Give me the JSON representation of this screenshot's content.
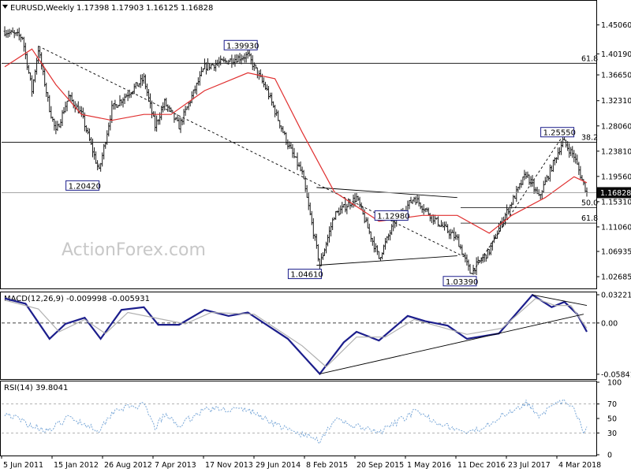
{
  "header": {
    "symbol": "EURUSD,Weekly",
    "open": "1.17398",
    "high": "1.17903",
    "low": "1.16125",
    "close": "1.16828"
  },
  "watermark": "ActionForex.com",
  "colors": {
    "price_bars": "#1a1a1a",
    "sma": "#e03030",
    "macd": "#1c1e8c",
    "signal": "#b0b0b0",
    "rsi": "#7aa8d8",
    "trendline": "#000000",
    "current_price_bg": "#0a0a0a"
  },
  "chart_data": [
    {
      "type": "candlestick",
      "panel": "price",
      "title": "EURUSD,Weekly 1.17398 1.17903 1.16125 1.16828",
      "ylim": [
        1.015,
        1.47
      ],
      "y_ticks": [
        "1.45060",
        "1.40190",
        "1.36650",
        "1.32310",
        "1.28060",
        "1.23810",
        "1.19560",
        "1.15310",
        "1.11060",
        "1.06935",
        "1.02685"
      ],
      "current_price": "1.16828",
      "x_ticks": [
        "5 Jun 2011",
        "15 Jan 2012",
        "26 Aug 2012",
        "7 Apr 2013",
        "17 Nov 2013",
        "29 Jun 2014",
        "8 Feb 2015",
        "20 Sep 2015",
        "1 May 2016",
        "11 Dec 2016",
        "23 Jul 2017",
        "4 Mar 2018"
      ],
      "price_path": [
        {
          "x": "2011-06-05",
          "y": 1.44
        },
        {
          "x": "2011-08-21",
          "y": 1.43
        },
        {
          "x": "2011-10-02",
          "y": 1.34
        },
        {
          "x": "2011-10-30",
          "y": 1.41
        },
        {
          "x": "2011-12-18",
          "y": 1.31
        },
        {
          "x": "2012-01-15",
          "y": 1.27
        },
        {
          "x": "2012-03-11",
          "y": 1.33
        },
        {
          "x": "2012-05-06",
          "y": 1.3
        },
        {
          "x": "2012-07-22",
          "y": 1.2042
        },
        {
          "x": "2012-09-16",
          "y": 1.31
        },
        {
          "x": "2013-02-03",
          "y": 1.36
        },
        {
          "x": "2013-03-24",
          "y": 1.28
        },
        {
          "x": "2013-05-05",
          "y": 1.32
        },
        {
          "x": "2013-07-07",
          "y": 1.28
        },
        {
          "x": "2013-10-27",
          "y": 1.38
        },
        {
          "x": "2014-05-04",
          "y": 1.3993
        },
        {
          "x": "2014-07-27",
          "y": 1.34
        },
        {
          "x": "2014-10-26",
          "y": 1.25
        },
        {
          "x": "2014-12-28",
          "y": 1.2
        },
        {
          "x": "2015-03-15",
          "y": 1.0461
        },
        {
          "x": "2015-05-17",
          "y": 1.13
        },
        {
          "x": "2015-08-23",
          "y": 1.16
        },
        {
          "x": "2015-11-29",
          "y": 1.058
        },
        {
          "x": "2016-02-07",
          "y": 1.12
        },
        {
          "x": "2016-05-01",
          "y": 1.16
        },
        {
          "x": "2016-08-07",
          "y": 1.12
        },
        {
          "x": "2016-11-06",
          "y": 1.09
        },
        {
          "x": "2017-01-01",
          "y": 1.0339
        },
        {
          "x": "2017-03-26",
          "y": 1.07
        },
        {
          "x": "2017-05-21",
          "y": 1.12
        },
        {
          "x": "2017-09-03",
          "y": 1.2
        },
        {
          "x": "2017-10-29",
          "y": 1.16
        },
        {
          "x": "2018-02-11",
          "y": 1.2555
        },
        {
          "x": "2018-04-01",
          "y": 1.23
        },
        {
          "x": "2018-05-06",
          "y": 1.19
        },
        {
          "x": "2018-05-27",
          "y": 1.16828
        }
      ],
      "sma_path": [
        {
          "x": "2011-06-05",
          "y": 1.38
        },
        {
          "x": "2011-10-02",
          "y": 1.41
        },
        {
          "x": "2012-01-15",
          "y": 1.35
        },
        {
          "x": "2012-05-06",
          "y": 1.3
        },
        {
          "x": "2012-09-16",
          "y": 1.29
        },
        {
          "x": "2013-02-03",
          "y": 1.3
        },
        {
          "x": "2013-06-02",
          "y": 1.3
        },
        {
          "x": "2013-10-27",
          "y": 1.34
        },
        {
          "x": "2014-05-04",
          "y": 1.37
        },
        {
          "x": "2014-08-31",
          "y": 1.36
        },
        {
          "x": "2014-12-28",
          "y": 1.27
        },
        {
          "x": "2015-05-17",
          "y": 1.17
        },
        {
          "x": "2015-11-29",
          "y": 1.12
        },
        {
          "x": "2016-06-05",
          "y": 1.13
        },
        {
          "x": "2016-11-06",
          "y": 1.13
        },
        {
          "x": "2017-03-26",
          "y": 1.1
        },
        {
          "x": "2017-07-02",
          "y": 1.13
        },
        {
          "x": "2017-11-26",
          "y": 1.16
        },
        {
          "x": "2018-04-01",
          "y": 1.195
        },
        {
          "x": "2018-05-27",
          "y": 1.185
        }
      ],
      "annotations": [
        {
          "label": "1.39930",
          "x": "2014-05-04",
          "y": 1.3993
        },
        {
          "label": "1.20420",
          "x": "2012-07-22",
          "y": 1.2042
        },
        {
          "label": "1.04610",
          "x": "2015-03-15",
          "y": 1.0461
        },
        {
          "label": "1.12980",
          "x": "2016-06-19",
          "y": 1.1298
        },
        {
          "label": "1.03390",
          "x": "2017-01-01",
          "y": 1.0339
        },
        {
          "label": "1.25550",
          "x": "2018-02-11",
          "y": 1.2555
        }
      ],
      "fib_lines": [
        {
          "label": "61.8",
          "y": 1.386
        },
        {
          "label": "38.2",
          "y": 1.253
        },
        {
          "label": "50.0",
          "y": 1.143
        },
        {
          "label": "61.8",
          "y": 1.117
        }
      ]
    },
    {
      "type": "line",
      "panel": "macd",
      "title": "MACD(12,26,9) -0.009998 -0.005931",
      "ylim": [
        -0.063,
        0.034
      ],
      "y_ticks": [
        "0.032215",
        "0.00",
        "-0.058413"
      ],
      "macd_path": [
        {
          "x": "2011-06-05",
          "y": 0.028
        },
        {
          "x": "2011-09-04",
          "y": 0.022
        },
        {
          "x": "2011-12-18",
          "y": -0.018
        },
        {
          "x": "2012-02-26",
          "y": -0.001
        },
        {
          "x": "2012-05-20",
          "y": 0.006
        },
        {
          "x": "2012-07-29",
          "y": -0.018
        },
        {
          "x": "2012-10-28",
          "y": 0.015
        },
        {
          "x": "2013-02-03",
          "y": 0.018
        },
        {
          "x": "2013-04-07",
          "y": -0.002
        },
        {
          "x": "2013-07-07",
          "y": -0.002
        },
        {
          "x": "2013-10-27",
          "y": 0.015
        },
        {
          "x": "2014-02-09",
          "y": 0.008
        },
        {
          "x": "2014-05-04",
          "y": 0.012
        },
        {
          "x": "2014-10-26",
          "y": -0.018
        },
        {
          "x": "2015-03-15",
          "y": -0.058
        },
        {
          "x": "2015-06-28",
          "y": -0.022
        },
        {
          "x": "2015-08-23",
          "y": -0.01
        },
        {
          "x": "2015-11-29",
          "y": -0.02
        },
        {
          "x": "2016-04-03",
          "y": 0.008
        },
        {
          "x": "2016-06-19",
          "y": 0.002
        },
        {
          "x": "2016-09-25",
          "y": -0.003
        },
        {
          "x": "2016-12-18",
          "y": -0.018
        },
        {
          "x": "2017-05-07",
          "y": -0.012
        },
        {
          "x": "2017-10-01",
          "y": 0.032
        },
        {
          "x": "2017-12-24",
          "y": 0.018
        },
        {
          "x": "2018-02-18",
          "y": 0.024
        },
        {
          "x": "2018-04-15",
          "y": 0.01
        },
        {
          "x": "2018-05-27",
          "y": -0.01
        }
      ],
      "signal_path": [
        {
          "x": "2011-06-05",
          "y": 0.026
        },
        {
          "x": "2011-10-30",
          "y": 0.016
        },
        {
          "x": "2012-01-29",
          "y": -0.01
        },
        {
          "x": "2012-05-20",
          "y": 0.004
        },
        {
          "x": "2012-08-19",
          "y": -0.012
        },
        {
          "x": "2012-11-25",
          "y": 0.012
        },
        {
          "x": "2013-04-28",
          "y": 0.004
        },
        {
          "x": "2013-08-04",
          "y": -0.001
        },
        {
          "x": "2013-11-24",
          "y": 0.012
        },
        {
          "x": "2014-06-01",
          "y": 0.01
        },
        {
          "x": "2014-12-28",
          "y": -0.026
        },
        {
          "x": "2015-04-12",
          "y": -0.05
        },
        {
          "x": "2015-08-23",
          "y": -0.016
        },
        {
          "x": "2015-12-27",
          "y": -0.016
        },
        {
          "x": "2016-05-01",
          "y": 0.004
        },
        {
          "x": "2016-12-18",
          "y": -0.013
        },
        {
          "x": "2017-05-21",
          "y": -0.006
        },
        {
          "x": "2017-10-15",
          "y": 0.028
        },
        {
          "x": "2018-01-07",
          "y": 0.02
        },
        {
          "x": "2018-03-18",
          "y": 0.02
        },
        {
          "x": "2018-05-27",
          "y": -0.006
        }
      ]
    },
    {
      "type": "line",
      "panel": "rsi",
      "title": "RSI(14) 39.8041",
      "ylim": [
        0,
        100
      ],
      "y_ticks": [
        "100",
        "70",
        "50",
        "30",
        "0"
      ],
      "rsi_path": [
        {
          "x": "2011-06-05",
          "y": 58
        },
        {
          "x": "2011-10-02",
          "y": 40
        },
        {
          "x": "2011-12-18",
          "y": 33
        },
        {
          "x": "2012-03-11",
          "y": 52
        },
        {
          "x": "2012-07-22",
          "y": 34
        },
        {
          "x": "2012-09-30",
          "y": 63
        },
        {
          "x": "2013-02-03",
          "y": 68
        },
        {
          "x": "2013-03-24",
          "y": 37
        },
        {
          "x": "2013-05-05",
          "y": 55
        },
        {
          "x": "2013-07-07",
          "y": 40
        },
        {
          "x": "2013-10-27",
          "y": 63
        },
        {
          "x": "2014-05-04",
          "y": 62
        },
        {
          "x": "2014-10-26",
          "y": 34
        },
        {
          "x": "2015-03-15",
          "y": 20
        },
        {
          "x": "2015-05-17",
          "y": 48
        },
        {
          "x": "2015-11-29",
          "y": 30
        },
        {
          "x": "2016-05-01",
          "y": 59
        },
        {
          "x": "2016-11-06",
          "y": 34
        },
        {
          "x": "2017-01-01",
          "y": 29
        },
        {
          "x": "2017-09-03",
          "y": 72
        },
        {
          "x": "2017-10-29",
          "y": 55
        },
        {
          "x": "2018-02-11",
          "y": 74
        },
        {
          "x": "2018-04-01",
          "y": 62
        },
        {
          "x": "2018-05-13",
          "y": 32
        },
        {
          "x": "2018-05-27",
          "y": 39.8
        }
      ]
    }
  ]
}
